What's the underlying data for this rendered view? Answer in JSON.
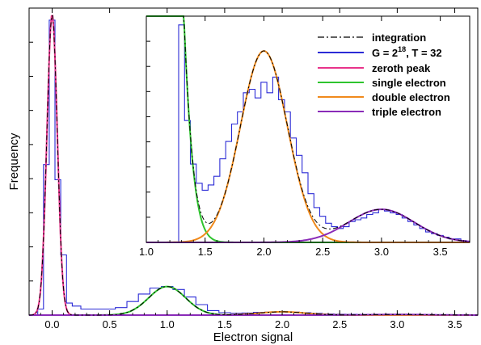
{
  "chart_data": [
    {
      "type": "line",
      "xlabel": "Electron signal",
      "ylabel": "Frequency",
      "xlim": [
        -0.2,
        3.7
      ],
      "ylim": [
        0,
        1.02
      ],
      "x_ticks": [
        0.0,
        0.5,
        1.0,
        1.5,
        2.0,
        2.5,
        3.0,
        3.5
      ],
      "x_tick_labels": [
        "0.0",
        "0.5",
        "1.0",
        "1.5",
        "2.0",
        "2.5",
        "3.0",
        "3.5"
      ],
      "y_tick_labels_shown": false,
      "grid": false,
      "colors": {
        "histogram": "#2b2bd6",
        "zeroth": "#e8338a",
        "single": "#2ec42e",
        "double": "#f08a1c",
        "triple": "#8a2bb8",
        "integration": "#000000"
      },
      "series": [
        {
          "name": "zeroth peak",
          "model": "gaussian",
          "center": 0.0,
          "sigma": 0.045,
          "amplitude": 1.0
        },
        {
          "name": "single electron",
          "model": "gaussian",
          "center": 1.0,
          "sigma": 0.16,
          "amplitude": 0.095
        },
        {
          "name": "double electron",
          "model": "gaussian",
          "center": 2.0,
          "sigma": 0.2,
          "amplitude": 0.011
        },
        {
          "name": "triple electron",
          "model": "gaussian",
          "center": 3.0,
          "sigma": 0.28,
          "amplitude": 0.0019
        },
        {
          "name": "G = 2^18, T = 32",
          "model": "histogram",
          "x": [
            -0.1,
            -0.05,
            0.0,
            0.05,
            0.1,
            0.15,
            0.2,
            0.3,
            0.4,
            0.5,
            0.6,
            0.7,
            0.8,
            0.9,
            1.0,
            1.1,
            1.2,
            1.3,
            1.4,
            1.5,
            1.6,
            1.7,
            1.8,
            1.9,
            2.0,
            2.1,
            2.2,
            2.3,
            2.4,
            2.5,
            2.6,
            2.7,
            2.8,
            2.9,
            3.0,
            3.1,
            3.2,
            3.3,
            3.4,
            3.5,
            3.6
          ],
          "y": [
            0.02,
            0.5,
            0.98,
            0.45,
            0.2,
            0.04,
            0.03,
            0.02,
            0.02,
            0.02,
            0.025,
            0.045,
            0.07,
            0.09,
            0.095,
            0.085,
            0.06,
            0.035,
            0.015,
            0.008,
            0.006,
            0.007,
            0.009,
            0.01,
            0.011,
            0.01,
            0.008,
            0.006,
            0.004,
            0.003,
            0.0025,
            0.002,
            0.0019,
            0.0018,
            0.0017,
            0.0015,
            0.0012,
            0.0009,
            0.0006,
            0.0004,
            0.0003
          ]
        },
        {
          "name": "integration",
          "model": "sum of components"
        }
      ]
    },
    {
      "type": "line",
      "inset": true,
      "xlim": [
        1.0,
        3.75
      ],
      "ylim": [
        0,
        0.013
      ],
      "x_ticks": [
        1.0,
        1.5,
        2.0,
        2.5,
        3.0,
        3.5
      ],
      "x_tick_labels": [
        "1.0",
        "1.5",
        "2.0",
        "2.5",
        "3.0",
        "3.5"
      ],
      "y_tick_labels_shown": false,
      "legend_position": "top-right",
      "legend": [
        {
          "label": "integration",
          "style": "dash-dot",
          "color": "#000000"
        },
        {
          "label_main": "G = 2",
          "label_sup": "18",
          "label_tail": ", T = 32",
          "style": "solid",
          "color": "#2b2bd6"
        },
        {
          "label": "zeroth peak",
          "style": "solid",
          "color": "#e8338a"
        },
        {
          "label": "single electron",
          "style": "solid",
          "color": "#2ec42e"
        },
        {
          "label": "double electron",
          "style": "solid",
          "color": "#f08a1c"
        },
        {
          "label": "triple electron",
          "style": "solid",
          "color": "#8a2bb8"
        }
      ],
      "histogram": {
        "name": "G = 2^18, T = 32",
        "x": [
          1.3,
          1.35,
          1.4,
          1.45,
          1.5,
          1.55,
          1.6,
          1.65,
          1.7,
          1.75,
          1.8,
          1.85,
          1.9,
          1.95,
          2.0,
          2.05,
          2.1,
          2.15,
          2.2,
          2.25,
          2.3,
          2.35,
          2.4,
          2.45,
          2.5,
          2.55,
          2.6,
          2.65,
          2.7,
          2.75,
          2.8,
          2.85,
          2.9,
          2.95,
          3.0,
          3.05,
          3.1,
          3.15,
          3.2,
          3.25,
          3.3,
          3.35,
          3.4,
          3.45,
          3.5,
          3.55,
          3.6,
          3.65,
          3.7
        ],
        "y": [
          0.0125,
          0.007,
          0.0045,
          0.0034,
          0.003,
          0.0033,
          0.0038,
          0.0048,
          0.0058,
          0.0068,
          0.0075,
          0.0086,
          0.0088,
          0.0083,
          0.0092,
          0.0086,
          0.0095,
          0.0082,
          0.0075,
          0.006,
          0.005,
          0.004,
          0.0028,
          0.002,
          0.0015,
          0.0011,
          0.0009,
          0.0008,
          0.0009,
          0.0012,
          0.0013,
          0.0014,
          0.0016,
          0.0017,
          0.0019,
          0.0018,
          0.0017,
          0.0016,
          0.0014,
          0.0012,
          0.001,
          0.0008,
          0.0006,
          0.0005,
          0.0004,
          0.0003,
          0.0002,
          0.0002,
          0.0001
        ]
      }
    }
  ]
}
